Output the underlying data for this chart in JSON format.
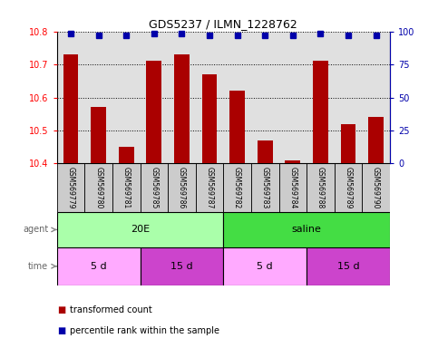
{
  "title": "GDS5237 / ILMN_1228762",
  "categories": [
    "GSM569779",
    "GSM569780",
    "GSM569781",
    "GSM569785",
    "GSM569786",
    "GSM569787",
    "GSM569782",
    "GSM569783",
    "GSM569784",
    "GSM569788",
    "GSM569789",
    "GSM569790"
  ],
  "bar_values": [
    10.73,
    10.57,
    10.45,
    10.71,
    10.73,
    10.67,
    10.62,
    10.47,
    10.41,
    10.71,
    10.52,
    10.54
  ],
  "percentile_values": [
    98,
    97,
    97,
    98,
    98,
    97,
    97,
    97,
    97,
    98,
    97,
    97
  ],
  "bar_color": "#AA0000",
  "percentile_color": "#0000AA",
  "ylim_left": [
    10.4,
    10.8
  ],
  "ylim_right": [
    0,
    100
  ],
  "yticks_left": [
    10.4,
    10.5,
    10.6,
    10.7,
    10.8
  ],
  "yticks_right": [
    0,
    25,
    50,
    75,
    100
  ],
  "agent_groups": [
    {
      "label": "20E",
      "start": 0,
      "end": 6,
      "color": "#AAFFAA"
    },
    {
      "label": "saline",
      "start": 6,
      "end": 12,
      "color": "#44DD44"
    }
  ],
  "time_groups": [
    {
      "label": "5 d",
      "start": 0,
      "end": 3,
      "color": "#FFAAFF"
    },
    {
      "label": "15 d",
      "start": 3,
      "end": 6,
      "color": "#CC44CC"
    },
    {
      "label": "5 d",
      "start": 6,
      "end": 9,
      "color": "#FFAAFF"
    },
    {
      "label": "15 d",
      "start": 9,
      "end": 12,
      "color": "#CC44CC"
    }
  ],
  "legend_items": [
    {
      "label": "transformed count",
      "color": "#AA0000"
    },
    {
      "label": "percentile rank within the sample",
      "color": "#0000AA"
    }
  ],
  "background_color": "#FFFFFF",
  "plot_bg_color": "#E0E0E0",
  "grid_color": "#000000",
  "label_bg_color": "#CCCCCC"
}
